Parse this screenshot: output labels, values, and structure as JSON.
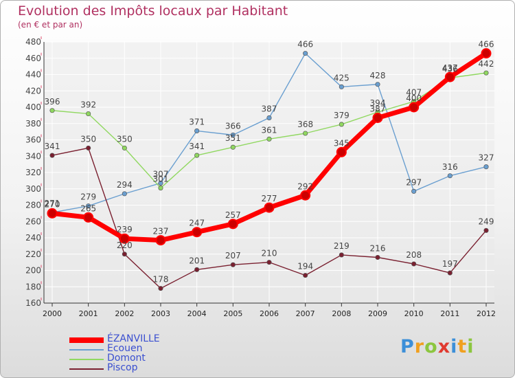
{
  "header": {
    "title": "Evolution des Impôts locaux par Habitant",
    "subtitle": "(en € et par an)"
  },
  "logo": {
    "text": "Proxiti"
  },
  "colors": {
    "ezanville": "#ff0000",
    "ecouen": "#6a9fd0",
    "domont": "#90d860",
    "piscop": "#7a2030",
    "axis": "#333333",
    "grid": "#ffffff",
    "label": "#444444"
  },
  "chart_data": {
    "type": "line",
    "title": "Evolution des Impôts locaux par Habitant",
    "subtitle": "(en € et par an)",
    "x": [
      "2000",
      "2001",
      "2002",
      "2003",
      "2004",
      "2005",
      "2006",
      "2007",
      "2008",
      "2009",
      "2010",
      "2011",
      "2012"
    ],
    "ylim": [
      160,
      480
    ],
    "yticks": [
      160,
      180,
      200,
      220,
      240,
      260,
      280,
      300,
      320,
      340,
      360,
      380,
      400,
      420,
      440,
      460,
      480
    ],
    "grid": true,
    "legend_position": "bottom-left",
    "series": [
      {
        "name": "ÉZANVILLE",
        "color": "#ff0000",
        "width": 7,
        "values": [
          270,
          265,
          239,
          237,
          247,
          257,
          277,
          292,
          345,
          387,
          400,
          437,
          466
        ]
      },
      {
        "name": "Ecouen",
        "color": "#6a9fd0",
        "width": 1.4,
        "values": [
          271,
          279,
          294,
          307,
          371,
          366,
          387,
          466,
          425,
          428,
          297,
          316,
          327
        ]
      },
      {
        "name": "Domont",
        "color": "#90d860",
        "width": 1.4,
        "values": [
          396,
          392,
          350,
          301,
          341,
          351,
          361,
          368,
          379,
          394,
          407,
          436,
          442
        ]
      },
      {
        "name": "Piscop",
        "color": "#7a2030",
        "width": 1.4,
        "values": [
          341,
          350,
          220,
          178,
          201,
          207,
          210,
          194,
          219,
          216,
          208,
          197,
          249
        ]
      }
    ]
  }
}
